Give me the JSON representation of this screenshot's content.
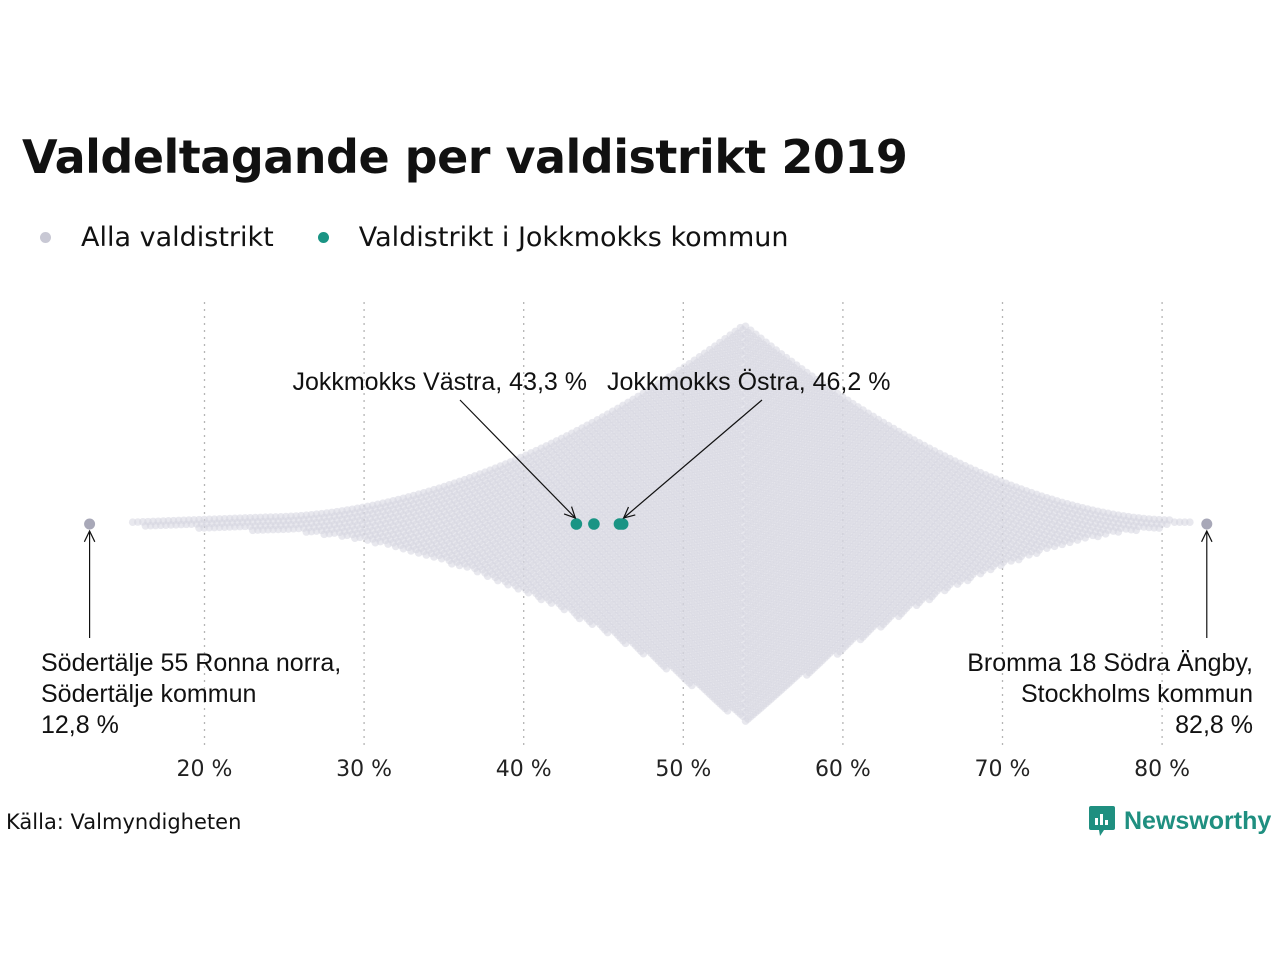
{
  "title": "Valdeltagande per valdistrikt 2019",
  "legend": [
    {
      "label": "Alla valdistrikt",
      "color": "#c8c8d4"
    },
    {
      "label": "Valdistrikt i Jokkmokks kommun",
      "color": "#1a9484"
    }
  ],
  "source": "Källa: Valmyndigheten",
  "brand": "Newsworthy",
  "chart_data": {
    "type": "scatter",
    "subtype": "beeswarm",
    "xlim": [
      10,
      85
    ],
    "x_ticks": [
      {
        "value": 20,
        "label": "20 %"
      },
      {
        "value": 30,
        "label": "30 %"
      },
      {
        "value": 40,
        "label": "40 %"
      },
      {
        "value": 50,
        "label": "50 %"
      },
      {
        "value": 60,
        "label": "60 %"
      },
      {
        "value": 70,
        "label": "70 %"
      },
      {
        "value": 80,
        "label": "80 %"
      }
    ],
    "grid": "vertical dotted",
    "series": [
      {
        "name": "Alla valdistrikt",
        "color": "#c8c8d4",
        "distribution_peak": 53.8,
        "min": 12.8,
        "max": 82.8
      },
      {
        "name": "Valdistrikt i Jokkmokks kommun",
        "color": "#1a9484",
        "values": [
          43.3,
          44.4,
          46.0,
          46.2
        ]
      }
    ],
    "extremes": [
      {
        "value": 12.8,
        "color": "#a8a8b8"
      },
      {
        "value": 82.8,
        "color": "#a8a8b8"
      }
    ],
    "annotations": [
      {
        "text": [
          "Jokkmokks Västra, 43,3 %"
        ],
        "value": 43.3
      },
      {
        "text": [
          "Jokkmokks Östra, 46,2 %"
        ],
        "value": 46.2
      },
      {
        "text": [
          "Södertälje 55 Ronna norra,",
          "Södertälje kommun",
          "12,8 %"
        ],
        "value": 12.8
      },
      {
        "text": [
          "Bromma 18 Södra Ängby,",
          "Stockholms kommun",
          "82,8 %"
        ],
        "value": 82.8
      }
    ]
  }
}
